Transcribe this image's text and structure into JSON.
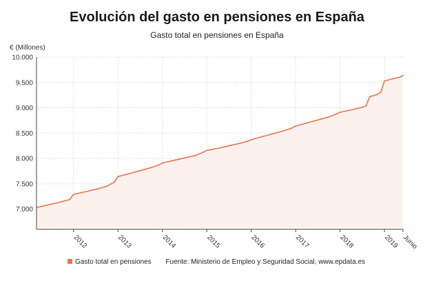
{
  "title": "Evolución del gasto en pensiones en España",
  "subtitle": "Gasto total en pensiones en España",
  "colors": {
    "line": "#e8734a",
    "fill": "#fdf1ee",
    "grid": "#cccccc",
    "axis": "#444444"
  },
  "legend": {
    "label": "Gasto total en pensiones",
    "source": "Fuente: Ministerio de Empleo y Seguridad Social, www.epdata.es"
  },
  "chart_data": {
    "type": "area",
    "title": "Evolución del gasto en pensiones en España",
    "subtitle": "Gasto total en pensiones en España",
    "ylabel": "€ (Millones)",
    "xlabel": "",
    "ylim": [
      6600,
      10000
    ],
    "xlim": [
      "2011-03",
      "2019-06"
    ],
    "grid": true,
    "legend_position": "bottom",
    "yticks": [
      {
        "value": 7000,
        "label": "7.000"
      },
      {
        "value": 7500,
        "label": "7.500"
      },
      {
        "value": 8000,
        "label": "8.000"
      },
      {
        "value": 8500,
        "label": "8.500"
      },
      {
        "value": 9000,
        "label": "9.000"
      },
      {
        "value": 9500,
        "label": "9.500"
      },
      {
        "value": 10000,
        "label": "10.000"
      }
    ],
    "xticks": [
      {
        "date": "2012-01",
        "label": "2012"
      },
      {
        "date": "2013-01",
        "label": "2013"
      },
      {
        "date": "2014-01",
        "label": "2014"
      },
      {
        "date": "2015-01",
        "label": "2015"
      },
      {
        "date": "2016-01",
        "label": "2016"
      },
      {
        "date": "2017-01",
        "label": "2017"
      },
      {
        "date": "2018-01",
        "label": "2018"
      },
      {
        "date": "2019-01",
        "label": "2019"
      },
      {
        "date": "2019-06",
        "label": "Junio"
      }
    ],
    "series": [
      {
        "name": "Gasto total en pensiones",
        "points": [
          [
            "2011-03",
            7030
          ],
          [
            "2011-06",
            7080
          ],
          [
            "2011-09",
            7130
          ],
          [
            "2011-12",
            7190
          ],
          [
            "2012-01",
            7290
          ],
          [
            "2012-04",
            7340
          ],
          [
            "2012-07",
            7390
          ],
          [
            "2012-10",
            7450
          ],
          [
            "2012-12",
            7530
          ],
          [
            "2013-01",
            7640
          ],
          [
            "2013-04",
            7700
          ],
          [
            "2013-07",
            7760
          ],
          [
            "2013-10",
            7820
          ],
          [
            "2013-12",
            7870
          ],
          [
            "2014-01",
            7910
          ],
          [
            "2014-04",
            7960
          ],
          [
            "2014-07",
            8010
          ],
          [
            "2014-10",
            8060
          ],
          [
            "2014-12",
            8120
          ],
          [
            "2015-01",
            8160
          ],
          [
            "2015-04",
            8200
          ],
          [
            "2015-07",
            8250
          ],
          [
            "2015-10",
            8300
          ],
          [
            "2015-12",
            8340
          ],
          [
            "2016-01",
            8370
          ],
          [
            "2016-04",
            8430
          ],
          [
            "2016-07",
            8490
          ],
          [
            "2016-10",
            8550
          ],
          [
            "2016-12",
            8600
          ],
          [
            "2017-01",
            8640
          ],
          [
            "2017-04",
            8700
          ],
          [
            "2017-07",
            8760
          ],
          [
            "2017-10",
            8820
          ],
          [
            "2017-12",
            8880
          ],
          [
            "2018-01",
            8910
          ],
          [
            "2018-04",
            8960
          ],
          [
            "2018-07",
            9010
          ],
          [
            "2018-08",
            9040
          ],
          [
            "2018-09",
            9220
          ],
          [
            "2018-11",
            9260
          ],
          [
            "2018-12",
            9310
          ],
          [
            "2019-01",
            9530
          ],
          [
            "2019-03",
            9570
          ],
          [
            "2019-05",
            9600
          ],
          [
            "2019-06",
            9640
          ]
        ]
      }
    ]
  }
}
